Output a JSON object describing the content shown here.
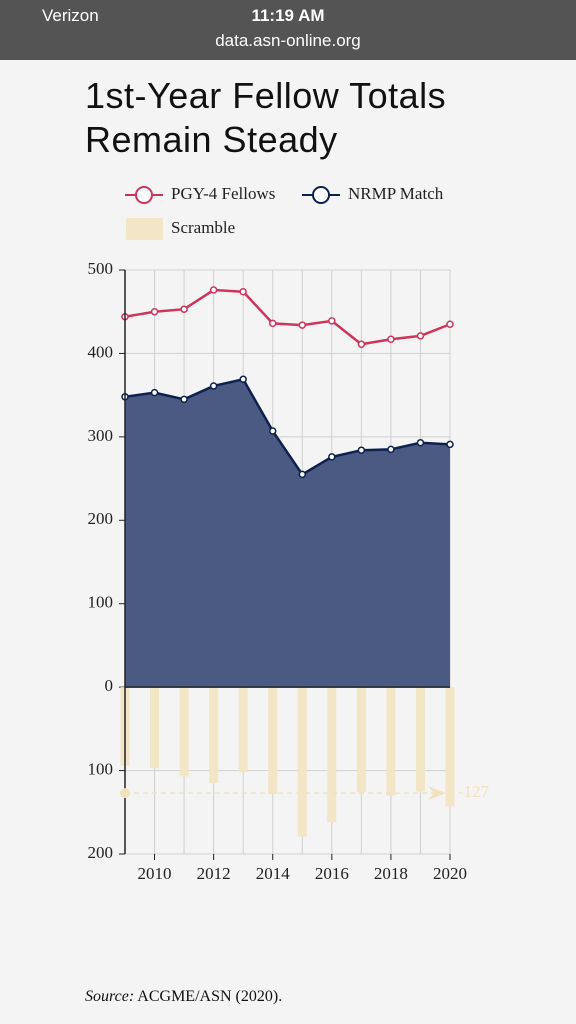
{
  "status_bar": {
    "carrier": "Verizon",
    "time": "11:19 AM",
    "url": "data.asn-online.org"
  },
  "chart_data": {
    "type": "line",
    "title": "1st-Year Fellow Totals Remain Steady",
    "x": [
      2009,
      2010,
      2011,
      2012,
      2013,
      2014,
      2015,
      2016,
      2017,
      2018,
      2019,
      2020
    ],
    "series": [
      {
        "name": "PGY-4 Fellows",
        "type": "line",
        "color": "#d0345c",
        "values": [
          444,
          450,
          453,
          476,
          474,
          436,
          434,
          439,
          411,
          417,
          421,
          435
        ]
      },
      {
        "name": "NRMP Match",
        "type": "area",
        "color": "#0d2150",
        "fill": "#4a5a82",
        "values": [
          348,
          353,
          345,
          361,
          369,
          307,
          255,
          276,
          284,
          285,
          293,
          291
        ]
      },
      {
        "name": "Scramble",
        "type": "bar",
        "color": "#f3e6c6",
        "values": [
          -94,
          -97,
          -107,
          -115,
          -102,
          -128,
          -179,
          -162,
          -126,
          -130,
          -125,
          -143
        ]
      }
    ],
    "xlim": [
      2009,
      2020
    ],
    "xticks": [
      2010,
      2012,
      2014,
      2016,
      2018,
      2020
    ],
    "ylim": [
      -200,
      500
    ],
    "yticks": [
      {
        "value": -200,
        "label": "200"
      },
      {
        "value": -100,
        "label": "100"
      },
      0,
      100,
      200,
      300,
      400,
      500
    ],
    "grid": true,
    "annotations": [
      {
        "y": -127
      }
    ]
  },
  "source": {
    "label": "Source:",
    "text": "ACGME/ASN (2020)."
  }
}
